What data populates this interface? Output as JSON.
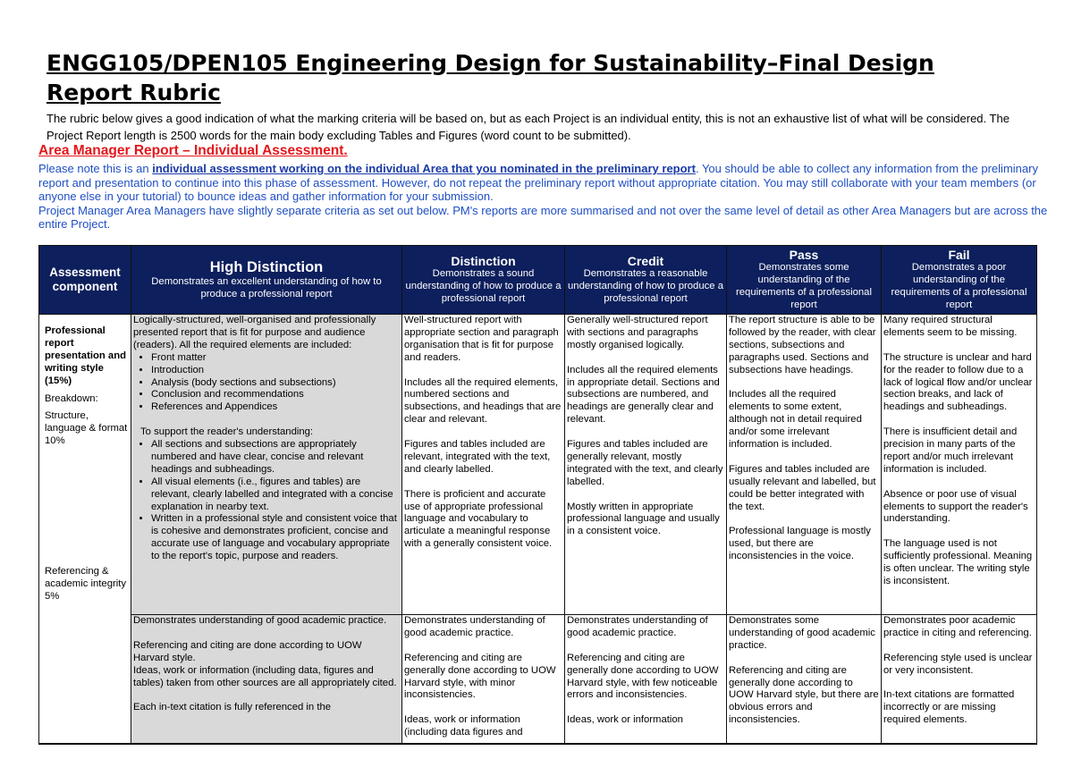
{
  "title": "ENGG105/DPEN105 Engineering Design for Sustainability–Final Design Report Rubric",
  "intro": "The rubric below gives a good indication of what the marking criteria will be based on, but as each Project is an individual entity, this is not an exhaustive list of what will be considered. The Project Report length is 2500 words for the main body excluding Tables and Figures (word count to be submitted).",
  "area_heading": "Area Manager Report – Individual Assessment.",
  "note": {
    "pre": "Please note this is an ",
    "emph": "individual assessment working on the individual Area that you nominated in the preliminary report",
    "post": ". You should be able to collect any information from the preliminary report and presentation to continue into this phase of assessment. However, do not repeat the preliminary report without appropriate citation. You may still collaborate with your team members (or anyone else in your tutorial) to bounce ideas and gather information for your submission.",
    "pm": "Project Manager Area Managers have slightly separate criteria as set out below. PM's reports are more summarised and not over the same level of detail as other Area Managers but are across the entire Project."
  },
  "colors": {
    "header_bg": "#0d1f5c",
    "area_heading": "#e3161b",
    "note_text": "#1f4fc4",
    "hd_cell": "#d9d9d9"
  },
  "table": {
    "headers": {
      "component": "Assessment component",
      "hd": {
        "level": "High Distinction",
        "desc": "Demonstrates an excellent understanding of how to produce a professional report"
      },
      "d": {
        "level": "Distinction",
        "desc": "Demonstrates a sound understanding of how to produce a professional report"
      },
      "c": {
        "level": "Credit",
        "desc": "Demonstrates a reasonable understanding of how to produce a professional report"
      },
      "p": {
        "level": "Pass",
        "desc": "Demonstrates some understanding of the requirements of a professional report"
      },
      "f": {
        "level": "Fail",
        "desc": "Demonstrates a poor understanding of the requirements of a professional report"
      }
    },
    "component": {
      "title": "Professional report presentation and writing style (15%)",
      "breakdown": "Breakdown:",
      "structure": "Structure, language & format 10%",
      "referencing": "Referencing & academic integrity 5%"
    },
    "row1": {
      "hd": {
        "intro": "Logically-structured, well-organised and professionally presented report that is fit for purpose and audience (readers). All the required elements are included:",
        "elements": [
          "Front matter",
          "Introduction",
          "Analysis (body sections and subsections)",
          "Conclusion and recommendations",
          "References and Appendices"
        ],
        "support": "To support the reader's understanding:",
        "support_items": [
          "All sections and subsections are appropriately numbered and have clear, concise and relevant headings and subheadings.",
          "All visual elements (i.e., figures and tables) are relevant, clearly labelled and integrated with a concise explanation in nearby text.",
          "Written in a professional style and consistent voice that is cohesive and demonstrates proficient, concise and accurate use of language and vocabulary appropriate to the report's topic, purpose and readers."
        ]
      },
      "d": [
        "Well-structured report with appropriate section and paragraph organisation that is fit for purpose and readers.",
        "Includes all the required elements, numbered sections and subsections, and headings that are clear and relevant.",
        "Figures and tables included are relevant, integrated with the text, and clearly labelled.",
        "There is proficient and accurate use of appropriate professional language and vocabulary to articulate a meaningful response with a generally consistent voice."
      ],
      "c": [
        "Generally well-structured report with sections and paragraphs mostly organised logically.",
        "Includes all the required elements in appropriate detail. Sections and subsections are numbered, and headings are generally clear and relevant.",
        "Figures and tables included are generally relevant, mostly integrated with the text, and clearly labelled.",
        "Mostly written in appropriate professional language and usually in a consistent voice."
      ],
      "p": [
        "The report structure is able to be followed by the reader, with clear sections, subsections and paragraphs used. Sections and subsections have headings.",
        "Includes all the required elements to some extent, although not in detail required and/or some irrelevant information is included.",
        "Figures and tables included are usually relevant and labelled, but could be better integrated with the text.",
        "Professional language is mostly used, but there are inconsistencies in the voice."
      ],
      "f": [
        "Many required structural elements seem to be missing.",
        "The structure is unclear and hard for the reader to follow due to a lack of logical flow and/or unclear section breaks, and lack of headings and subheadings.",
        "There is insufficient detail and precision in many parts of the report and/or much irrelevant information is included.",
        "Absence or poor use of visual elements to support the reader's understanding.",
        "The language used is not sufficiently professional. Meaning is often unclear. The writing style is inconsistent."
      ]
    },
    "row2": {
      "hd": [
        "Demonstrates understanding of good academic practice.",
        "Referencing and citing are done according to UOW Harvard style.",
        "Ideas, work or information (including data, figures and tables) taken from other sources are all appropriately cited.",
        "Each in-text citation is fully referenced in the"
      ],
      "d": [
        "Demonstrates understanding of good academic practice.",
        "Referencing and citing are generally done according to UOW Harvard style, with minor inconsistencies.",
        "Ideas, work or information (including data figures and"
      ],
      "c": [
        "Demonstrates understanding of good academic practice.",
        "Referencing and citing are generally done according to UOW Harvard style, with few noticeable errors and inconsistencies.",
        "Ideas, work or information"
      ],
      "p": [
        "Demonstrates some understanding of good academic practice.",
        "Referencing and citing are generally done according to UOW Harvard style, but there are obvious errors and inconsistencies."
      ],
      "f": [
        "Demonstrates poor academic practice in citing and referencing.",
        "Referencing style used is unclear or very inconsistent.",
        "In-text citations are formatted incorrectly or are missing required elements."
      ]
    }
  }
}
